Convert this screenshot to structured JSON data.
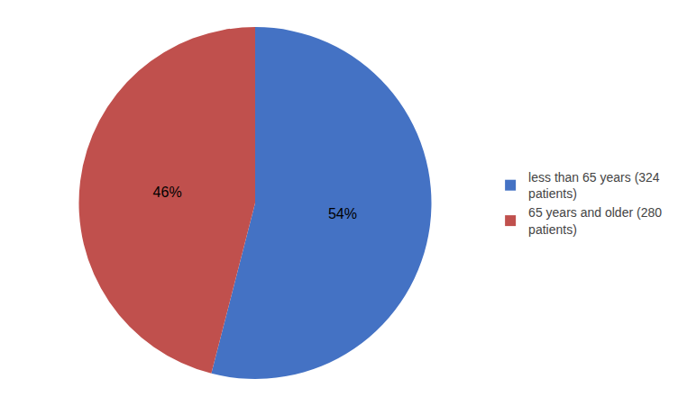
{
  "chart_data": {
    "type": "pie",
    "categories": [
      "less than 65 years (324\npatients)",
      "65 years and older (280\npatients)"
    ],
    "values": [
      54,
      46
    ],
    "value_labels": [
      "54%",
      "46%"
    ],
    "colors": [
      "#4472C4",
      "#C0504D"
    ],
    "legend": "right"
  }
}
